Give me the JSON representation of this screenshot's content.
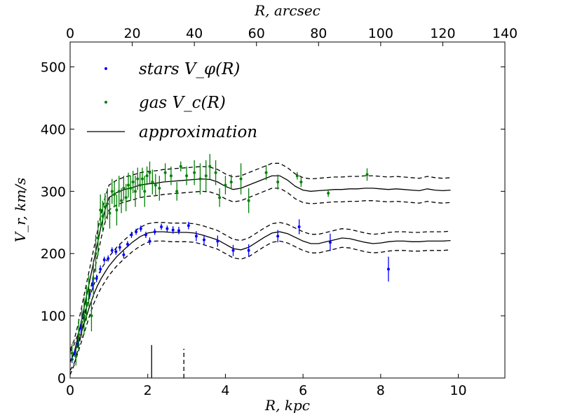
{
  "chart_data": {
    "type": "scatter",
    "xlabel": "R, kpc",
    "ylabel": "V_r, km/s",
    "top_xlabel": "R, arcsec",
    "xlim": [
      0,
      11.2
    ],
    "ylim": [
      0,
      540
    ],
    "top_xlim": [
      0,
      140
    ],
    "x_ticks": [
      0,
      2,
      4,
      6,
      8,
      10
    ],
    "y_ticks": [
      0,
      100,
      200,
      300,
      400,
      500
    ],
    "top_x_ticks": [
      0,
      20,
      40,
      60,
      80,
      100,
      120,
      140
    ],
    "grid": false,
    "legend_position": "top-left",
    "legend": [
      {
        "label": "stars",
        "math": "V_φ(R)",
        "color": "#0000ff",
        "kind": "point"
      },
      {
        "label": "gas",
        "math": "V_c(R)",
        "color": "#008000",
        "kind": "point"
      },
      {
        "label": "approximation",
        "math": "",
        "color": "#000000",
        "kind": "line"
      }
    ],
    "series": [
      {
        "name": "stars Vφ(R)",
        "color": "#0000ff",
        "points": [
          {
            "x": 0.05,
            "y": 30,
            "err": 6
          },
          {
            "x": 0.12,
            "y": 40,
            "err": 6
          },
          {
            "x": 0.2,
            "y": 55,
            "err": 7
          },
          {
            "x": 0.28,
            "y": 80,
            "err": 8
          },
          {
            "x": 0.35,
            "y": 100,
            "err": 8
          },
          {
            "x": 0.42,
            "y": 120,
            "err": 8
          },
          {
            "x": 0.5,
            "y": 135,
            "err": 8
          },
          {
            "x": 0.58,
            "y": 150,
            "err": 8
          },
          {
            "x": 0.68,
            "y": 160,
            "err": 6
          },
          {
            "x": 0.78,
            "y": 175,
            "err": 6
          },
          {
            "x": 0.88,
            "y": 190,
            "err": 5
          },
          {
            "x": 0.98,
            "y": 192,
            "err": 5
          },
          {
            "x": 1.08,
            "y": 205,
            "err": 5
          },
          {
            "x": 1.18,
            "y": 203,
            "err": 5
          },
          {
            "x": 1.28,
            "y": 210,
            "err": 6
          },
          {
            "x": 1.38,
            "y": 198,
            "err": 6
          },
          {
            "x": 1.48,
            "y": 215,
            "err": 5
          },
          {
            "x": 1.58,
            "y": 230,
            "err": 5
          },
          {
            "x": 1.7,
            "y": 235,
            "err": 5
          },
          {
            "x": 1.82,
            "y": 240,
            "err": 5
          },
          {
            "x": 1.95,
            "y": 230,
            "err": 5
          },
          {
            "x": 2.05,
            "y": 220,
            "err": 6
          },
          {
            "x": 2.18,
            "y": 235,
            "err": 5
          },
          {
            "x": 2.35,
            "y": 243,
            "err": 5
          },
          {
            "x": 2.5,
            "y": 240,
            "err": 5
          },
          {
            "x": 2.65,
            "y": 238,
            "err": 6
          },
          {
            "x": 2.8,
            "y": 237,
            "err": 6
          },
          {
            "x": 3.05,
            "y": 245,
            "err": 6
          },
          {
            "x": 3.25,
            "y": 228,
            "err": 8
          },
          {
            "x": 3.45,
            "y": 222,
            "err": 8
          },
          {
            "x": 3.8,
            "y": 220,
            "err": 9
          },
          {
            "x": 4.2,
            "y": 205,
            "err": 9
          },
          {
            "x": 4.6,
            "y": 205,
            "err": 10
          },
          {
            "x": 5.35,
            "y": 228,
            "err": 10
          },
          {
            "x": 5.9,
            "y": 243,
            "err": 12
          },
          {
            "x": 6.7,
            "y": 218,
            "err": 14
          },
          {
            "x": 8.2,
            "y": 175,
            "err": 20
          }
        ]
      },
      {
        "name": "gas Vc(R)",
        "color": "#008000",
        "points": [
          {
            "x": 0.05,
            "y": 40,
            "err": 15
          },
          {
            "x": 0.15,
            "y": 35,
            "err": 15
          },
          {
            "x": 0.22,
            "y": 70,
            "err": 25
          },
          {
            "x": 0.3,
            "y": 90,
            "err": 25
          },
          {
            "x": 0.36,
            "y": 100,
            "err": 30
          },
          {
            "x": 0.42,
            "y": 120,
            "err": 28
          },
          {
            "x": 0.48,
            "y": 140,
            "err": 25
          },
          {
            "x": 0.55,
            "y": 100,
            "err": 25
          },
          {
            "x": 0.6,
            "y": 160,
            "err": 30
          },
          {
            "x": 0.66,
            "y": 200,
            "err": 30
          },
          {
            "x": 0.72,
            "y": 225,
            "err": 28
          },
          {
            "x": 0.78,
            "y": 270,
            "err": 25
          },
          {
            "x": 0.84,
            "y": 260,
            "err": 25
          },
          {
            "x": 0.9,
            "y": 275,
            "err": 22
          },
          {
            "x": 0.96,
            "y": 280,
            "err": 25
          },
          {
            "x": 1.02,
            "y": 265,
            "err": 25
          },
          {
            "x": 1.08,
            "y": 300,
            "err": 20
          },
          {
            "x": 1.14,
            "y": 295,
            "err": 20
          },
          {
            "x": 1.2,
            "y": 270,
            "err": 25
          },
          {
            "x": 1.26,
            "y": 300,
            "err": 25
          },
          {
            "x": 1.32,
            "y": 285,
            "err": 20
          },
          {
            "x": 1.38,
            "y": 305,
            "err": 20
          },
          {
            "x": 1.44,
            "y": 290,
            "err": 22
          },
          {
            "x": 1.5,
            "y": 310,
            "err": 20
          },
          {
            "x": 1.56,
            "y": 305,
            "err": 20
          },
          {
            "x": 1.62,
            "y": 315,
            "err": 18
          },
          {
            "x": 1.68,
            "y": 300,
            "err": 25
          },
          {
            "x": 1.74,
            "y": 320,
            "err": 18
          },
          {
            "x": 1.8,
            "y": 310,
            "err": 20
          },
          {
            "x": 1.86,
            "y": 320,
            "err": 18
          },
          {
            "x": 1.92,
            "y": 300,
            "err": 25
          },
          {
            "x": 1.98,
            "y": 325,
            "err": 15
          },
          {
            "x": 2.05,
            "y": 330,
            "err": 18
          },
          {
            "x": 2.12,
            "y": 315,
            "err": 20
          },
          {
            "x": 2.2,
            "y": 310,
            "err": 18
          },
          {
            "x": 2.3,
            "y": 305,
            "err": 20
          },
          {
            "x": 2.45,
            "y": 330,
            "err": 15
          },
          {
            "x": 2.6,
            "y": 325,
            "err": 15
          },
          {
            "x": 2.75,
            "y": 300,
            "err": 15
          },
          {
            "x": 2.85,
            "y": 340,
            "err": 8
          },
          {
            "x": 3.0,
            "y": 325,
            "err": 15
          },
          {
            "x": 3.2,
            "y": 330,
            "err": 20
          },
          {
            "x": 3.35,
            "y": 320,
            "err": 25
          },
          {
            "x": 3.5,
            "y": 325,
            "err": 25
          },
          {
            "x": 3.6,
            "y": 340,
            "err": 20
          },
          {
            "x": 3.75,
            "y": 330,
            "err": 20
          },
          {
            "x": 3.85,
            "y": 290,
            "err": 15
          },
          {
            "x": 4.0,
            "y": 310,
            "err": 15
          },
          {
            "x": 4.15,
            "y": 315,
            "err": 12
          },
          {
            "x": 4.4,
            "y": 320,
            "err": 25
          },
          {
            "x": 4.6,
            "y": 285,
            "err": 20
          },
          {
            "x": 5.05,
            "y": 330,
            "err": 12
          },
          {
            "x": 5.35,
            "y": 315,
            "err": 12
          },
          {
            "x": 5.85,
            "y": 325,
            "err": 6
          },
          {
            "x": 5.95,
            "y": 315,
            "err": 8
          },
          {
            "x": 6.65,
            "y": 297,
            "err": 6
          },
          {
            "x": 7.65,
            "y": 327,
            "err": 10
          }
        ]
      }
    ],
    "approximation": {
      "stars": {
        "x": [
          0,
          0.1,
          0.2,
          0.3,
          0.4,
          0.5,
          0.6,
          0.7,
          0.8,
          0.9,
          1.0,
          1.2,
          1.4,
          1.6,
          1.8,
          2.0,
          2.2,
          2.4,
          2.6,
          2.8,
          3.0,
          3.2,
          3.4,
          3.6,
          3.8,
          4.0,
          4.2,
          4.4,
          4.6,
          4.8,
          5.0,
          5.2,
          5.4,
          5.6,
          5.8,
          6.0,
          6.2,
          6.4,
          6.6,
          6.8,
          7.0,
          7.2,
          7.4,
          7.6,
          7.8,
          8.0,
          8.2,
          8.4,
          8.6,
          8.8,
          9.0,
          9.2,
          9.4,
          9.6,
          9.8
        ],
        "y": [
          27,
          38,
          55,
          75,
          95,
          115,
          133,
          148,
          160,
          170,
          180,
          195,
          207,
          218,
          227,
          233,
          235,
          235,
          234,
          234,
          234,
          233,
          230,
          226,
          222,
          215,
          208,
          206,
          210,
          218,
          226,
          233,
          235,
          232,
          226,
          220,
          216,
          216,
          219,
          222,
          225,
          224,
          221,
          218,
          216,
          217,
          219,
          220,
          220,
          219,
          219,
          220,
          220,
          220,
          221
        ],
        "band": 15
      },
      "gas": {
        "x": [
          0,
          0.1,
          0.2,
          0.3,
          0.4,
          0.5,
          0.6,
          0.7,
          0.8,
          0.9,
          1.0,
          1.2,
          1.4,
          1.6,
          1.8,
          2.0,
          2.2,
          2.4,
          2.6,
          2.8,
          3.0,
          3.2,
          3.4,
          3.6,
          3.8,
          4.0,
          4.2,
          4.4,
          4.6,
          4.8,
          5.0,
          5.2,
          5.4,
          5.6,
          5.8,
          6.0,
          6.2,
          6.4,
          6.6,
          6.8,
          7.0,
          7.2,
          7.4,
          7.6,
          7.8,
          8.0,
          8.2,
          8.4,
          8.6,
          8.8,
          9.0,
          9.2,
          9.4,
          9.6,
          9.8
        ],
        "y": [
          25,
          40,
          65,
          95,
          125,
          155,
          185,
          215,
          245,
          270,
          290,
          298,
          303,
          306,
          310,
          312,
          313,
          315,
          316,
          317,
          318,
          319,
          320,
          319,
          315,
          308,
          303,
          305,
          310,
          315,
          320,
          325,
          325,
          318,
          308,
          302,
          300,
          301,
          302,
          303,
          303,
          304,
          304,
          305,
          305,
          304,
          303,
          304,
          303,
          302,
          301,
          304,
          302,
          301,
          302
        ],
        "band": 20
      }
    },
    "markers": [
      {
        "x": 2.1,
        "height": 53,
        "style": "solid"
      },
      {
        "x": 2.93,
        "height": 47,
        "style": "dashed"
      }
    ]
  }
}
